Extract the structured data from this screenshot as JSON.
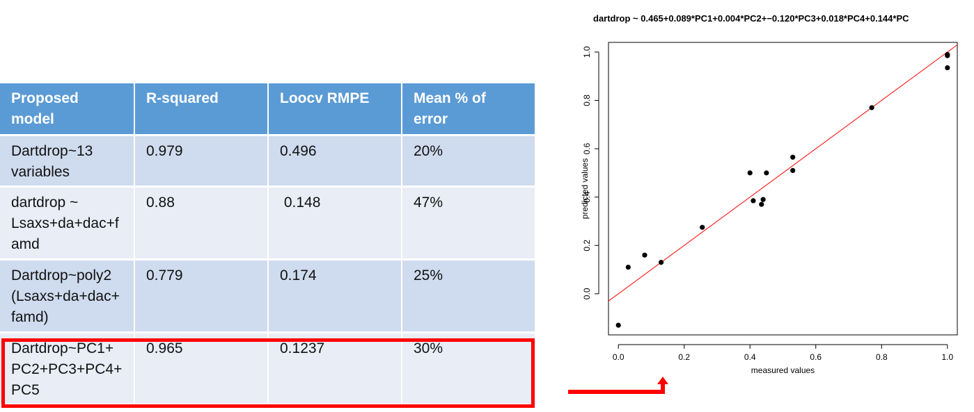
{
  "table": {
    "headers": [
      "Proposed model",
      "R-squared",
      "Loocv RMPE",
      "Mean % of error"
    ],
    "rows": [
      [
        "Dartdrop~13 variables",
        "0.979",
        "0.496",
        "20%"
      ],
      [
        "dartdrop ~ Lsaxs+da+dac+famd",
        "0.88",
        " 0.148",
        "47%"
      ],
      [
        "Dartdrop~poly2 (Lsaxs+da+dac+famd)",
        "0.779",
        "0.174",
        "25%"
      ],
      [
        "Dartdrop~PC1+PC2+PC3+PC4+PC5",
        "0.965",
        "0.1237",
        "30%"
      ]
    ],
    "header_lines": [
      [
        "Proposed",
        "model"
      ],
      [
        "R-squared"
      ],
      [
        "Loocv RMPE"
      ],
      [
        "Mean % of",
        "error"
      ]
    ],
    "row_lines": [
      [
        [
          "Dartdrop~13",
          "variables"
        ],
        [
          "0.979"
        ],
        [
          "0.496"
        ],
        [
          "20%"
        ]
      ],
      [
        [
          "dartdrop ~",
          "Lsaxs+da+dac+f",
          "amd"
        ],
        [
          "0.88"
        ],
        [
          " 0.148"
        ],
        [
          "47%"
        ]
      ],
      [
        [
          "Dartdrop~poly2",
          "(Lsaxs+da+dac+",
          "famd)"
        ],
        [
          "0.779"
        ],
        [
          "0.174"
        ],
        [
          "25%"
        ]
      ],
      [
        [
          "Dartdrop~PC1+",
          "PC2+PC3+PC4+",
          "PC5"
        ],
        [
          "0.965"
        ],
        [
          "0.1237"
        ],
        [
          "30%"
        ]
      ]
    ],
    "header_color": "#5b9bd5",
    "row_colors": [
      "#cfdbee",
      "#e8edf6"
    ],
    "highlight_color": "#ff0000",
    "highlighted_row": 4
  },
  "chart_data": {
    "type": "scatter",
    "title": "dartdrop ~ 0.465+0.089*PC1+0.004*PC2+−0.120*PC3+0.018*PC4+0.144*PC",
    "xlabel": "measured values",
    "ylabel": "predicted values",
    "xlim": [
      -0.03,
      1.03
    ],
    "ylim": [
      -0.17,
      1.04
    ],
    "xticks": [
      0.0,
      0.2,
      0.4,
      0.6,
      0.8,
      1.0
    ],
    "yticks": [
      0.0,
      0.2,
      0.4,
      0.6,
      0.8,
      1.0
    ],
    "xtick_labels": [
      "0.0",
      "0.2",
      "0.4",
      "0.6",
      "0.8",
      "1.0"
    ],
    "ytick_labels": [
      "0.0",
      "0.2",
      "0.4",
      "0.6",
      "0.8",
      "1.0"
    ],
    "points": [
      [
        0.0,
        -0.13
      ],
      [
        0.03,
        0.11
      ],
      [
        0.08,
        0.16
      ],
      [
        0.13,
        0.13
      ],
      [
        0.255,
        0.275
      ],
      [
        0.4,
        0.5
      ],
      [
        0.41,
        0.385
      ],
      [
        0.435,
        0.37
      ],
      [
        0.44,
        0.39
      ],
      [
        0.45,
        0.5
      ],
      [
        0.53,
        0.565
      ],
      [
        0.53,
        0.51
      ],
      [
        0.77,
        0.77
      ],
      [
        1.0,
        0.99
      ],
      [
        1.0,
        0.985
      ],
      [
        1.0,
        0.935
      ]
    ],
    "fit_line": {
      "intercept": 0.0,
      "slope": 1.0
    },
    "point_color": "#000000",
    "line_color": "#ff0000",
    "grid": false
  },
  "arrow_color": "#ff0000"
}
